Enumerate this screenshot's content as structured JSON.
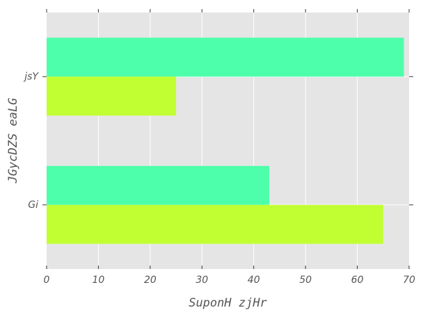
{
  "chart_data": {
    "type": "bar",
    "orientation": "horizontal",
    "categories": [
      "Gi",
      "jsY"
    ],
    "series": [
      {
        "values": [
          43,
          69
        ],
        "color": "#4dffaa"
      },
      {
        "values": [
          65,
          25
        ],
        "color": "#c1ff33"
      }
    ],
    "xlabel": "SuponH zjHr",
    "ylabel": "JGycDZS eaLG",
    "xlim": [
      0,
      70
    ],
    "xticks": [
      0,
      10,
      20,
      30,
      40,
      50,
      60,
      70
    ],
    "grid": true,
    "legend": "none",
    "style": "ggplot"
  },
  "colors": {
    "plot_background": "#e5e5e5",
    "grid": "#ffffff",
    "text": "#555555"
  }
}
